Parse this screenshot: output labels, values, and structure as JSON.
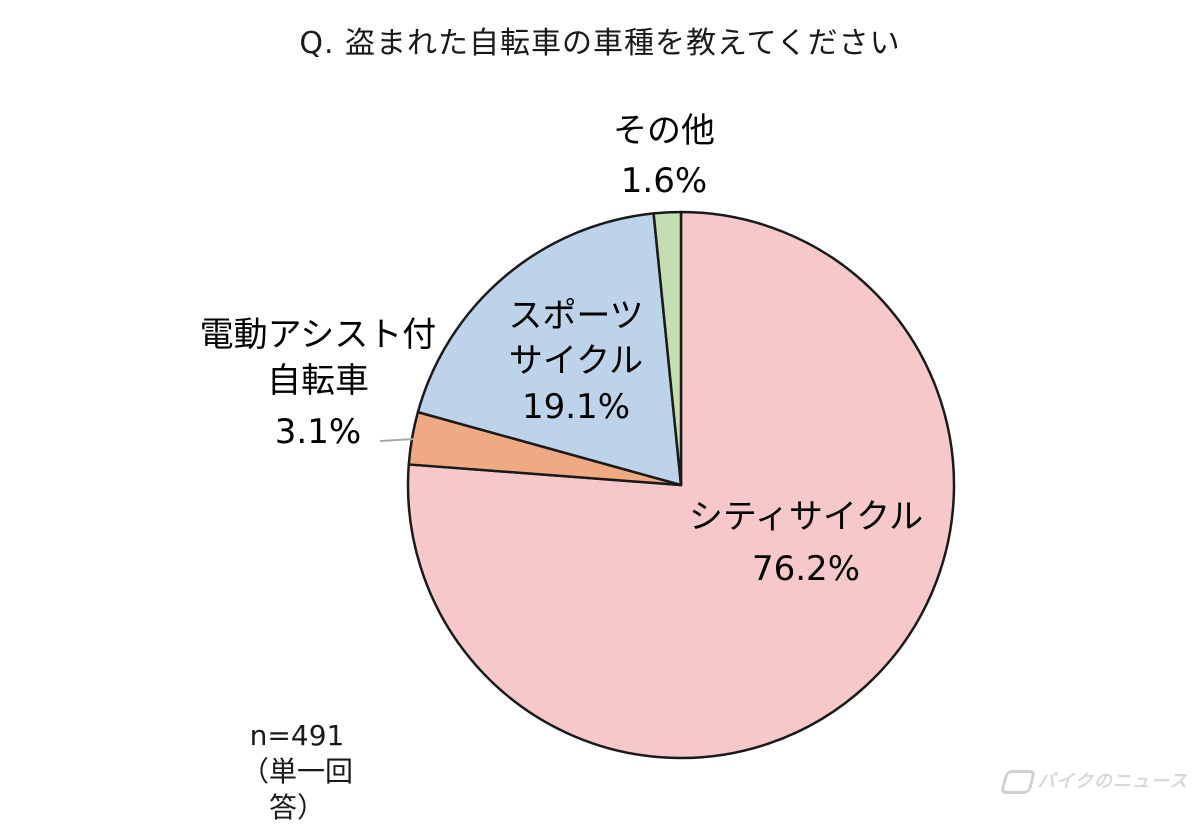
{
  "chart_data": {
    "type": "pie",
    "title": "Q. 盗まれた自転車の車種を教えてください",
    "slices": [
      {
        "label": "シティサイクル",
        "value": 76.2,
        "value_label": "76.2%",
        "color": "#f7c8c9"
      },
      {
        "label": "電動アシスト付自転車",
        "value": 3.1,
        "value_label": "3.1%",
        "color": "#efaa84"
      },
      {
        "label": "スポーツサイクル",
        "value": 19.1,
        "value_label": "19.1%",
        "color": "#bdd3ea"
      },
      {
        "label": "その他",
        "value": 1.6,
        "value_label": "1.6%",
        "color": "#c4deb1"
      }
    ]
  },
  "labels": {
    "city_line1": "シティサイクル",
    "city_value": "76.2%",
    "ebike_line1": "電動アシスト付",
    "ebike_line2": "自転車",
    "ebike_value": "3.1%",
    "sports_line1": "スポーツ",
    "sports_line2": "サイクル",
    "sports_value": "19.1%",
    "other_line1": "その他",
    "other_value": "1.6%"
  },
  "sample": {
    "n": "n=491",
    "note": "（単一回答）"
  },
  "watermark": "バイクのニュース"
}
